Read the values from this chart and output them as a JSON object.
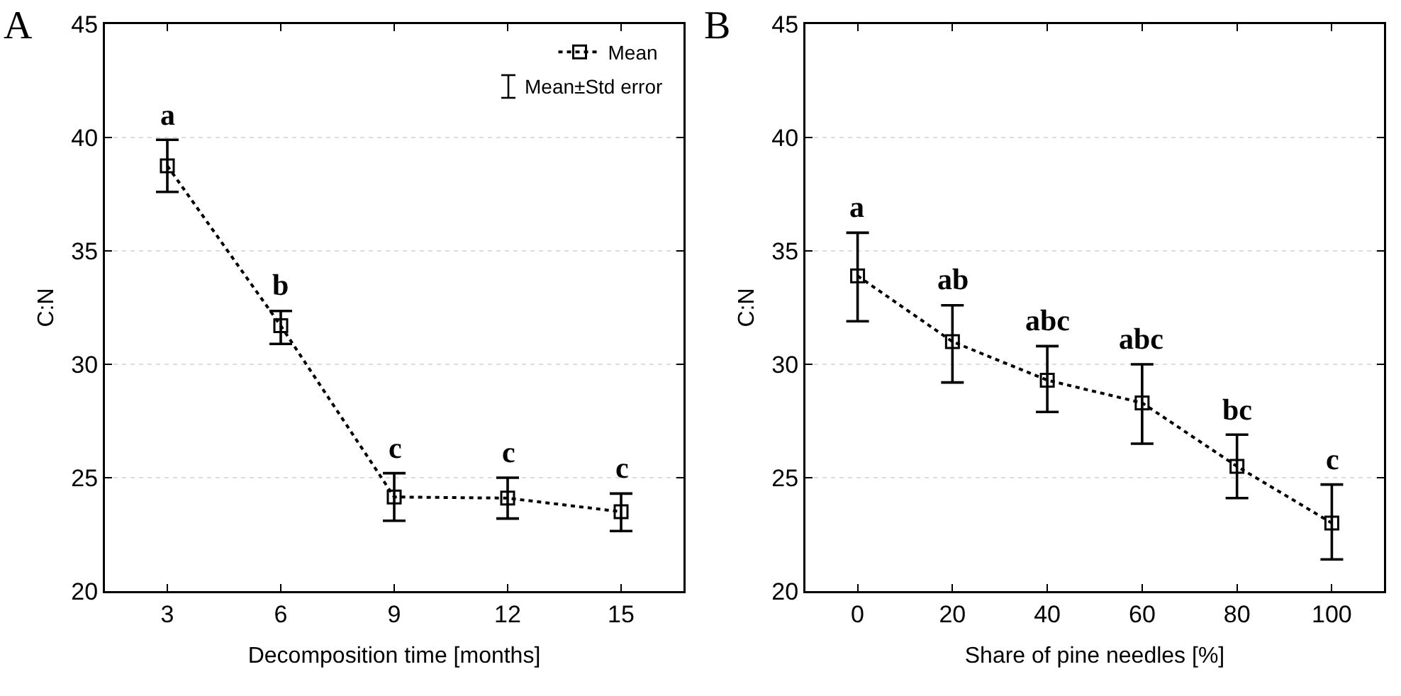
{
  "chart_data": [
    {
      "type": "line",
      "title": "A",
      "xlabel": "Decomposition time [months]",
      "ylabel": "C:N",
      "categories": [
        "3",
        "6",
        "9",
        "12",
        "15"
      ],
      "series": [
        {
          "name": "Mean",
          "color": "#000000",
          "values": [
            38.75,
            31.7,
            24.15,
            24.1,
            23.5
          ],
          "errors": [
            [
              37.6,
              39.9
            ],
            [
              30.9,
              32.35
            ],
            [
              23.1,
              25.2
            ],
            [
              23.2,
              25.0
            ],
            [
              22.65,
              24.3
            ]
          ]
        }
      ],
      "ylim": [
        20,
        45
      ],
      "yticks": [
        20,
        25,
        30,
        35,
        40,
        45
      ],
      "grid": "y",
      "legend": "top right",
      "marker": "square",
      "line_style": "dotted",
      "annotations": [
        "a",
        "b",
        "c",
        "c",
        "c",
        "Mean±Std error"
      ]
    },
    {
      "type": "line",
      "title": "B",
      "xlabel": "Share of pine needles [%]",
      "ylabel": "C:N",
      "categories": [
        "0",
        "20",
        "40",
        "60",
        "80",
        "100"
      ],
      "series": [
        {
          "color": "#000000",
          "values": [
            33.9,
            31.0,
            29.3,
            28.3,
            25.5,
            23.0
          ],
          "errors": [
            [
              31.9,
              35.8
            ],
            [
              29.2,
              32.6
            ],
            [
              27.9,
              30.8
            ],
            [
              26.5,
              30.0
            ],
            [
              24.1,
              26.9
            ],
            [
              21.4,
              24.7
            ]
          ]
        }
      ],
      "ylim": [
        20,
        45
      ],
      "yticks": [
        20,
        25,
        30,
        35,
        40,
        45
      ],
      "grid": "y",
      "marker": "square",
      "line_style": "dotted",
      "annotations": [
        "a",
        "ab",
        "abc",
        "abc",
        "bc",
        "c"
      ]
    }
  ]
}
